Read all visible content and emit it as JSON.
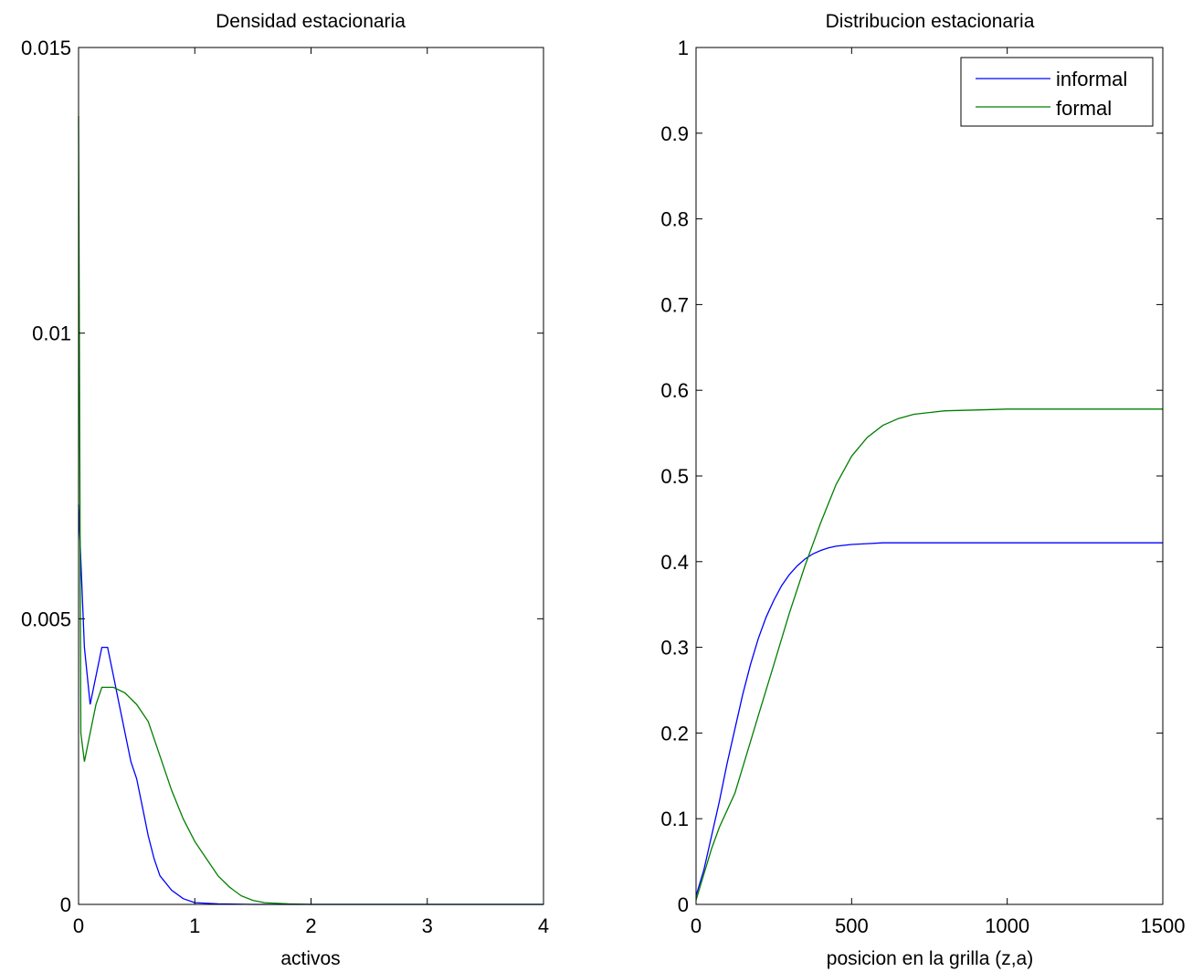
{
  "chart_data": [
    {
      "type": "line",
      "title": "Densidad estacionaria",
      "xlabel": "activos",
      "ylabel": "",
      "xlim": [
        0,
        4
      ],
      "ylim": [
        0,
        0.015
      ],
      "xticks": [
        0,
        1,
        2,
        3,
        4
      ],
      "xtick_labels": [
        "0",
        "1",
        "2",
        "3",
        "4"
      ],
      "yticks": [
        0,
        0.005,
        0.01,
        0.015
      ],
      "ytick_labels": [
        "0",
        "0.005",
        "0.01",
        "0.015"
      ],
      "grid": false,
      "legend": "none",
      "series": [
        {
          "color": "#0000ff",
          "x": [
            0,
            0.05,
            0.1,
            0.15,
            0.2,
            0.25,
            0.3,
            0.35,
            0.4,
            0.45,
            0.5,
            0.55,
            0.6,
            0.65,
            0.7,
            0.8,
            0.9,
            1.0,
            1.2,
            1.5,
            2,
            4
          ],
          "y": [
            0.007,
            0.0045,
            0.0035,
            0.004,
            0.0045,
            0.0045,
            0.004,
            0.0035,
            0.003,
            0.0025,
            0.0022,
            0.0017,
            0.0012,
            0.0008,
            0.0005,
            0.00025,
            0.0001,
            3e-05,
            1e-05,
            0,
            0,
            0
          ]
        },
        {
          "color": "#007f00",
          "x": [
            0,
            0.02,
            0.05,
            0.1,
            0.15,
            0.2,
            0.3,
            0.4,
            0.5,
            0.6,
            0.7,
            0.8,
            0.9,
            1.0,
            1.1,
            1.2,
            1.3,
            1.4,
            1.5,
            1.6,
            1.8,
            2,
            3,
            4
          ],
          "y": [
            0.0138,
            0.003,
            0.0025,
            0.003,
            0.0035,
            0.0038,
            0.0038,
            0.0037,
            0.0035,
            0.0032,
            0.0026,
            0.002,
            0.0015,
            0.0011,
            0.0008,
            0.0005,
            0.0003,
            0.00015,
            7e-05,
            3e-05,
            1e-05,
            0,
            0,
            0
          ]
        }
      ]
    },
    {
      "type": "line",
      "title": "Distribucion estacionaria",
      "xlabel": "posicion en la grilla (z,a)",
      "ylabel": "",
      "xlim": [
        0,
        1500
      ],
      "ylim": [
        0,
        1
      ],
      "xticks": [
        0,
        500,
        1000,
        1500
      ],
      "xtick_labels": [
        "0",
        "500",
        "1000",
        "1500"
      ],
      "yticks": [
        0,
        0.1,
        0.2,
        0.3,
        0.4,
        0.5,
        0.6,
        0.7,
        0.8,
        0.9,
        1
      ],
      "ytick_labels": [
        "0",
        "0.1",
        "0.2",
        "0.3",
        "0.4",
        "0.5",
        "0.6",
        "0.7",
        "0.8",
        "0.9",
        "1"
      ],
      "grid": false,
      "legend": "top-right",
      "series": [
        {
          "name": "informal",
          "color": "#0000ff",
          "x": [
            0,
            25,
            50,
            75,
            100,
            125,
            150,
            175,
            200,
            225,
            250,
            275,
            300,
            325,
            350,
            375,
            400,
            425,
            450,
            500,
            550,
            600,
            700,
            800,
            1000,
            1500
          ],
          "y": [
            0.01,
            0.04,
            0.08,
            0.12,
            0.165,
            0.205,
            0.245,
            0.28,
            0.31,
            0.335,
            0.355,
            0.372,
            0.385,
            0.395,
            0.403,
            0.409,
            0.413,
            0.416,
            0.418,
            0.42,
            0.421,
            0.422,
            0.422,
            0.422,
            0.422,
            0.422
          ]
        },
        {
          "name": "formal",
          "color": "#007f00",
          "x": [
            0,
            25,
            50,
            75,
            100,
            125,
            150,
            175,
            200,
            250,
            300,
            350,
            400,
            450,
            500,
            550,
            600,
            650,
            700,
            800,
            900,
            1000,
            1200,
            1500
          ],
          "y": [
            0.005,
            0.035,
            0.065,
            0.09,
            0.11,
            0.13,
            0.16,
            0.19,
            0.22,
            0.28,
            0.34,
            0.395,
            0.445,
            0.49,
            0.523,
            0.545,
            0.559,
            0.567,
            0.572,
            0.576,
            0.577,
            0.578,
            0.578,
            0.578
          ]
        }
      ]
    }
  ]
}
